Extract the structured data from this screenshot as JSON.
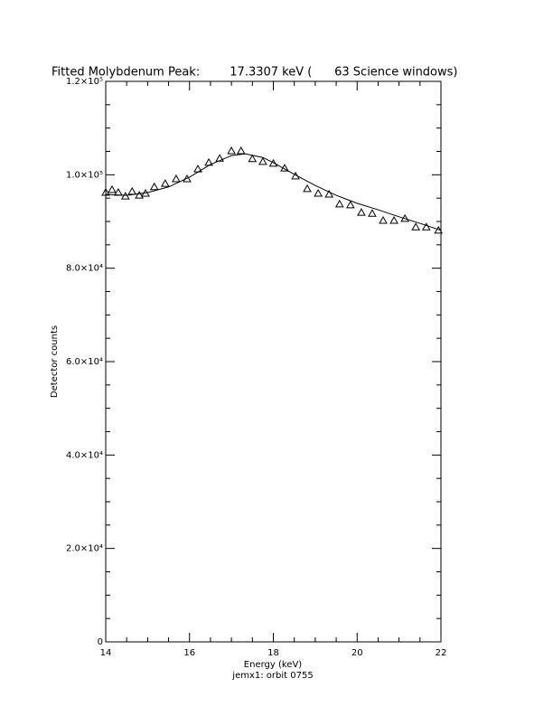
{
  "chart_data": {
    "type": "scatter",
    "title": "Fitted Molybdenum Peak:        17.3307 keV (      63 Science windows)",
    "x_label": "Energy (keV)",
    "subtitle": "jemx1: orbit 0755",
    "y_label": "Detector counts",
    "xlim": [
      14,
      22
    ],
    "xticks": [
      14,
      16,
      18,
      20,
      22
    ],
    "xminorticks": [
      14.5,
      15,
      15.5,
      16.5,
      17,
      17.5,
      18.5,
      19,
      19.5,
      20.5,
      21,
      21.5
    ],
    "ylim": [
      0,
      120000
    ],
    "yticks": [
      0,
      {
        "value": 20000,
        "label": "2.0×10⁴"
      },
      {
        "value": 40000,
        "label": "4.0×10⁴"
      },
      {
        "value": 60000,
        "label": "6.0×10⁴"
      },
      {
        "value": 80000,
        "label": "8.0×10⁴"
      },
      {
        "value": 100000,
        "label": "1.0×10⁵"
      },
      {
        "value": 120000,
        "label": "1.2×10⁵"
      }
    ],
    "yminorticks": [
      5000,
      10000,
      15000,
      25000,
      30000,
      35000,
      45000,
      50000,
      55000,
      65000,
      70000,
      75000,
      85000,
      90000,
      95000,
      105000,
      110000,
      115000
    ],
    "color": "#000000",
    "series": [
      {
        "kind": "points",
        "x": [
          14.0,
          14.15,
          14.3,
          14.47,
          14.63,
          14.8,
          14.95,
          15.16,
          15.42,
          15.68,
          15.94,
          16.2,
          16.46,
          16.72,
          17.0,
          17.23,
          17.5,
          17.75,
          18.0,
          18.27,
          18.53,
          18.81,
          19.07,
          19.33,
          19.58,
          19.84,
          20.1,
          20.36,
          20.62,
          20.88,
          21.14,
          21.4,
          21.65,
          21.94
        ],
        "values": [
          96200,
          96800,
          96200,
          95400,
          96400,
          95600,
          96000,
          97400,
          98100,
          99100,
          99100,
          101200,
          102600,
          103500,
          105100,
          105100,
          103400,
          102800,
          102400,
          101400,
          99700,
          97000,
          96000,
          95800,
          93700,
          93500,
          91900,
          91700,
          90200,
          90200,
          90600,
          88800,
          88800,
          88100
        ]
      },
      {
        "kind": "line",
        "x": [
          14.0,
          14.5,
          15.0,
          15.5,
          16.0,
          16.5,
          17.0,
          17.33,
          17.75,
          18.0,
          18.5,
          19.0,
          19.5,
          20.0,
          20.5,
          21.0,
          21.5,
          22.0
        ],
        "values": [
          95800,
          95600,
          96200,
          97400,
          99500,
          102200,
          104100,
          104500,
          103700,
          102600,
          100100,
          97700,
          95600,
          93900,
          92500,
          91000,
          89600,
          88100
        ]
      }
    ]
  }
}
